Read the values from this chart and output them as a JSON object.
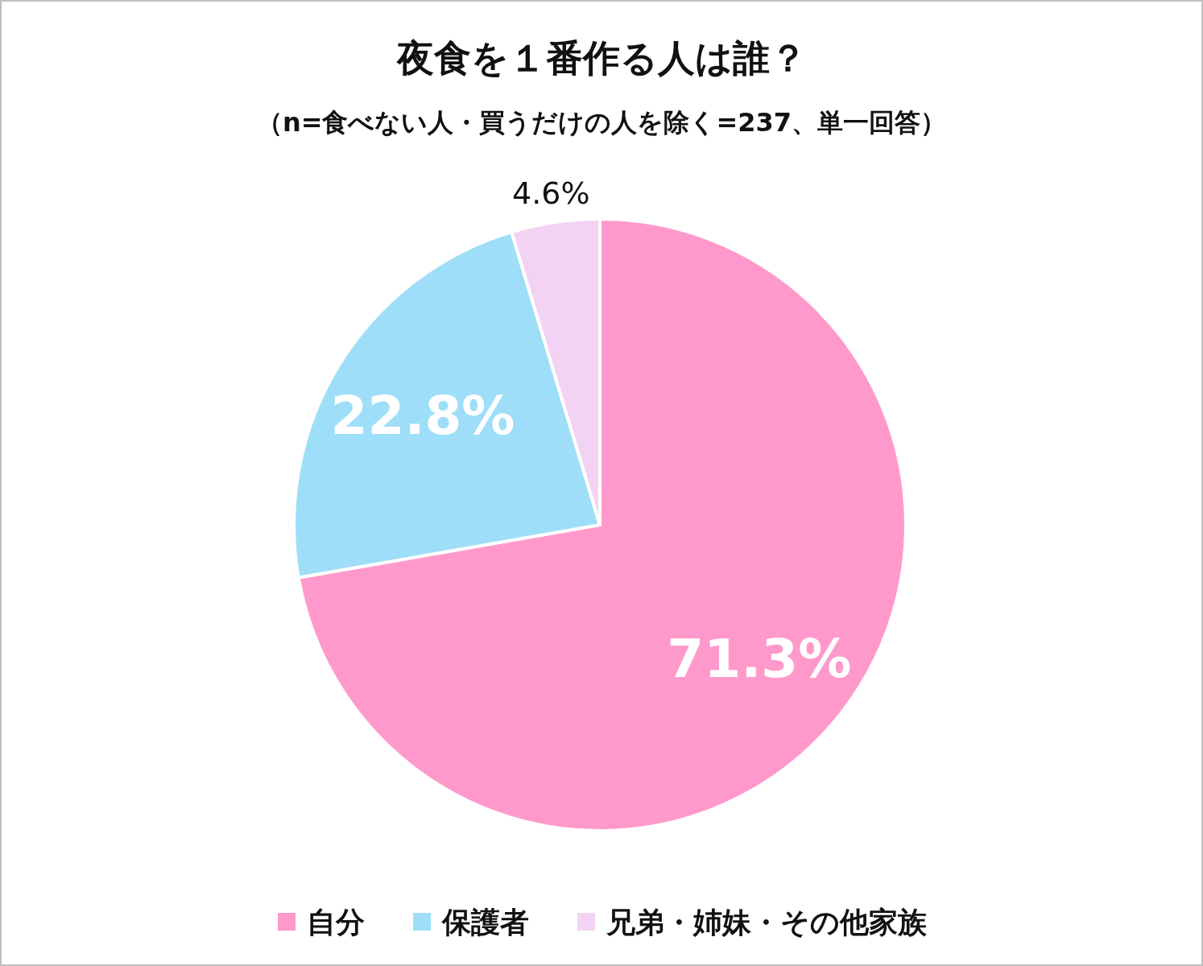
{
  "chart_data": {
    "type": "pie",
    "title": "夜食を１番作る人は誰？",
    "subtitle": "（n=食べない人・買うだけの人を除く=237、単一回答）",
    "categories": [
      "自分",
      "保護者",
      "兄弟・姉妹・その他家族"
    ],
    "values": [
      71.3,
      22.8,
      4.6
    ],
    "value_labels": [
      "71.3%",
      "22.8%",
      "4.6%"
    ],
    "colors": [
      "#ff99cc",
      "#9fdef8",
      "#f3d3f3"
    ],
    "legend": "bottom"
  }
}
